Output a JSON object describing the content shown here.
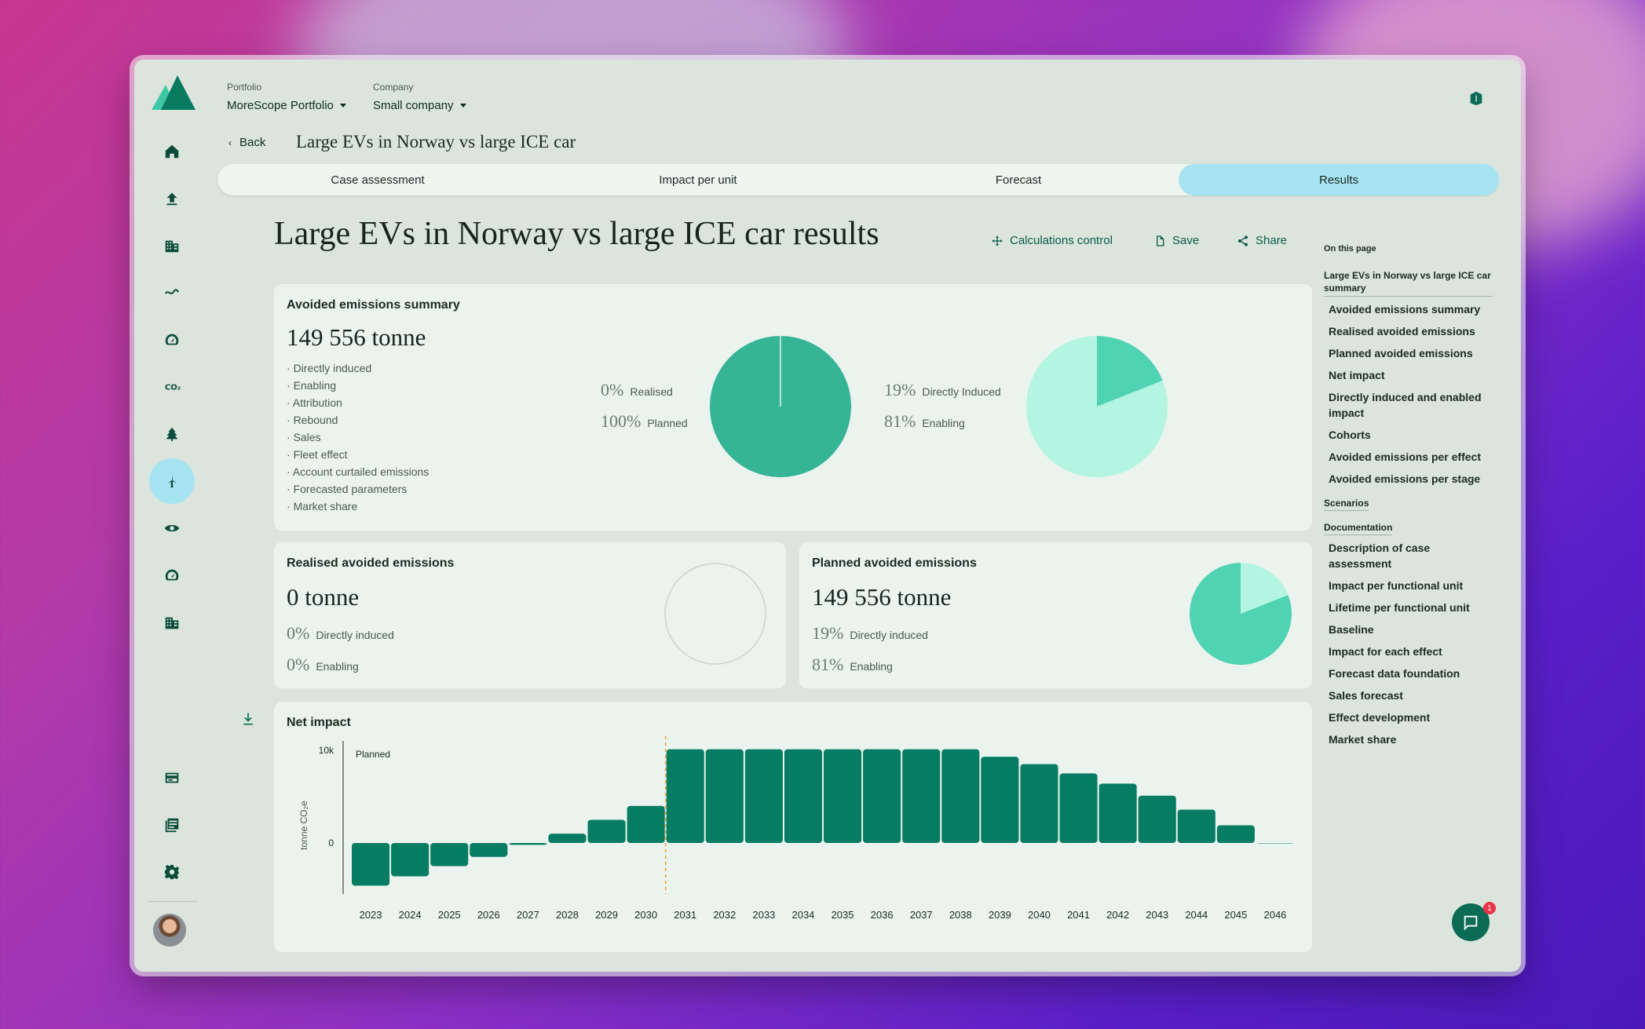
{
  "nav": {
    "portfolio_label": "Portfolio",
    "portfolio_value": "MoreScope Portfolio",
    "company_label": "Company",
    "company_value": "Small company",
    "rail_icons": [
      "home-icon",
      "upload-icon",
      "building-icon",
      "wave-icon",
      "gauge-icon",
      "co2-icon",
      "tree-icon",
      "wind-turbine-icon",
      "eye-icon",
      "gauge-icon",
      "building-icon",
      "card-icon",
      "report-icon",
      "gear-icon"
    ]
  },
  "breadcrumb": {
    "back": "Back",
    "title": "Large EVs in Norway vs large ICE car"
  },
  "tabs": [
    {
      "label": "Case assessment",
      "active": false
    },
    {
      "label": "Impact per unit",
      "active": false
    },
    {
      "label": "Forecast",
      "active": false
    },
    {
      "label": "Results",
      "active": true
    }
  ],
  "page": {
    "title": "Large EVs in Norway vs large ICE car results",
    "actions": {
      "calc": "Calculations control",
      "save": "Save",
      "share": "Share"
    }
  },
  "summary": {
    "title": "Avoided emissions summary",
    "total": "149 556 tonne",
    "bullets": [
      "Directly induced",
      "Enabling",
      "Attribution",
      "Rebound",
      "Sales",
      "Fleet effect",
      "Account curtailed emissions",
      "Forecasted parameters",
      "Market share"
    ],
    "pie1": {
      "rows": [
        {
          "pct": "0%",
          "label": "Realised"
        },
        {
          "pct": "100%",
          "label": "Planned"
        }
      ]
    },
    "pie2": {
      "rows": [
        {
          "pct": "19%",
          "label": "Directly Induced"
        },
        {
          "pct": "81%",
          "label": "Enabling"
        }
      ]
    }
  },
  "realised": {
    "title": "Realised avoided emissions",
    "total": "0 tonne",
    "rows": [
      {
        "pct": "0%",
        "label": "Directly induced"
      },
      {
        "pct": "0%",
        "label": "Enabling"
      }
    ]
  },
  "planned": {
    "title": "Planned avoided emissions",
    "total": "149 556 tonne",
    "rows": [
      {
        "pct": "19%",
        "label": "Directly induced"
      },
      {
        "pct": "81%",
        "label": "Enabling"
      }
    ]
  },
  "net": {
    "title": "Net impact",
    "annotation": "Planned",
    "ylabel": "tonne CO₂e",
    "yticks": [
      "10k",
      "0"
    ]
  },
  "chart_data": [
    {
      "type": "pie",
      "categories": [
        "Realised",
        "Planned"
      ],
      "values": [
        0,
        100
      ],
      "colors": [
        "#e9f1ec",
        "#35b596"
      ]
    },
    {
      "type": "pie",
      "categories": [
        "Directly Induced",
        "Enabling"
      ],
      "values": [
        19,
        81
      ],
      "colors": [
        "#4fd3b3",
        "#b3f5e1"
      ]
    },
    {
      "type": "pie",
      "categories": [
        "Directly induced",
        "Enabling"
      ],
      "values": [
        19,
        81
      ],
      "colors": [
        "#b3f5e1",
        "#4fd3b3"
      ]
    },
    {
      "type": "bar",
      "title": "Net impact",
      "ylabel": "tonne CO₂e",
      "categories": [
        "2023",
        "2024",
        "2025",
        "2026",
        "2027",
        "2028",
        "2029",
        "2030",
        "2031",
        "2032",
        "2033",
        "2034",
        "2035",
        "2036",
        "2037",
        "2038",
        "2039",
        "2040",
        "2041",
        "2042",
        "2043",
        "2044",
        "2045",
        "2046"
      ],
      "values": [
        -4600,
        -3600,
        -2500,
        -1500,
        -200,
        1000,
        2500,
        4000,
        10100,
        10100,
        10100,
        10100,
        10100,
        10100,
        10100,
        10100,
        9300,
        8500,
        7500,
        6400,
        5100,
        3600,
        1900,
        0
      ],
      "ylim": [
        -5500,
        11000
      ],
      "annotation": {
        "x": "2031",
        "label": "Planned"
      },
      "color": "#067d62"
    }
  ],
  "toc": {
    "head": "On this page",
    "summary_link": "Large EVs in Norway vs large ICE car summary",
    "summary_items": [
      "Avoided emissions summary",
      "Realised avoided emissions",
      "Planned avoided emissions",
      "Net impact",
      "Directly induced and enabled impact",
      "Cohorts",
      "Avoided emissions per effect",
      "Avoided emissions per stage"
    ],
    "scenarios": "Scenarios",
    "documentation": "Documentation",
    "doc_items": [
      "Description of case assessment",
      "Impact per functional unit",
      "Lifetime per functional unit",
      "Baseline",
      "Impact for each effect",
      "Forecast data foundation",
      "Sales forecast",
      "Effect development",
      "Market share"
    ]
  },
  "chat_badge": "1"
}
